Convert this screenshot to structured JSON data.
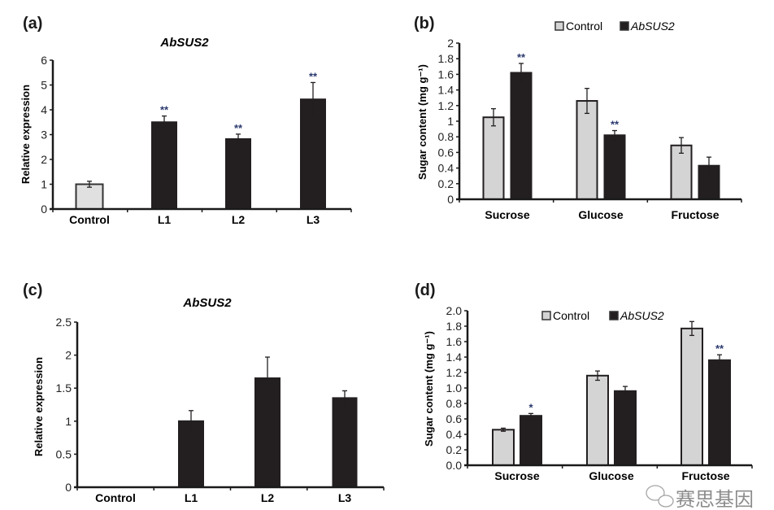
{
  "colors": {
    "control": "#e0e0e0",
    "control_b": "#d4d4d4",
    "transgenic": "#231f20",
    "axis": "#1a1a1a",
    "significance": "#2b3a6e",
    "panel_label": "#1a1a1a"
  },
  "watermark": {
    "icon": "wechat-icon",
    "text": "赛思基因"
  },
  "chart_data": [
    {
      "panel": "(a)",
      "type": "bar",
      "title": "AbSUS2",
      "ylabel": "Relative expression",
      "xlabel": "",
      "ylim": [
        0,
        6
      ],
      "yticks": [
        "0",
        "1",
        "2",
        "3",
        "4",
        "5",
        "6"
      ],
      "grid": false,
      "categories": [
        "Control",
        "L1",
        "L2",
        "L3"
      ],
      "values": [
        1.0,
        3.5,
        2.82,
        4.42
      ],
      "errors": [
        0.12,
        0.25,
        0.2,
        0.68
      ],
      "bar_fill": [
        "control",
        "transgenic",
        "transgenic",
        "transgenic"
      ],
      "significance": [
        "",
        "**",
        "**",
        "**"
      ]
    },
    {
      "panel": "(b)",
      "type": "bar",
      "title": "",
      "ylabel": "Sugar content (mg g⁻¹)",
      "xlabel": "",
      "ylim": [
        0,
        2
      ],
      "yticks": [
        "0",
        "0.2",
        "0.4",
        "0.6",
        "0.8",
        "1",
        "1.2",
        "1.4",
        "1.6",
        "1.8",
        "2"
      ],
      "grid": false,
      "legend": "top",
      "categories": [
        "Sucrose",
        "Glucose",
        "Fructose"
      ],
      "series": [
        {
          "name": "Control",
          "values": [
            1.05,
            1.26,
            0.69
          ],
          "errors": [
            0.11,
            0.16,
            0.1
          ],
          "significance": [
            "",
            "",
            ""
          ]
        },
        {
          "name": "AbSUS2",
          "values": [
            1.62,
            0.82,
            0.43
          ],
          "errors": [
            0.12,
            0.06,
            0.11
          ],
          "significance": [
            "**",
            "**",
            ""
          ]
        }
      ]
    },
    {
      "panel": "(c)",
      "type": "bar",
      "title": "AbSUS2",
      "ylabel": "Relative expression",
      "xlabel": "",
      "ylim": [
        0,
        2.5
      ],
      "yticks": [
        "0",
        "0.5",
        "1",
        "1.5",
        "2",
        "2.5"
      ],
      "grid": false,
      "categories": [
        "Control",
        "L1",
        "L2",
        "L3"
      ],
      "values": [
        0,
        1.0,
        1.65,
        1.35
      ],
      "errors": [
        0,
        0.16,
        0.32,
        0.11
      ],
      "bar_fill": [
        "control",
        "transgenic",
        "transgenic",
        "transgenic"
      ],
      "significance": [
        "",
        "",
        "",
        ""
      ]
    },
    {
      "panel": "(d)",
      "type": "bar",
      "title": "",
      "ylabel": "Sugar content (mg g⁻¹)",
      "xlabel": "",
      "ylim": [
        0,
        2.0
      ],
      "yticks": [
        "0.0",
        "0.2",
        "0.4",
        "0.6",
        "0.8",
        "1.0",
        "1.2",
        "1.4",
        "1.6",
        "1.8",
        "2.0"
      ],
      "grid": false,
      "legend": "top",
      "categories": [
        "Sucrose",
        "Glucose",
        "Fructose"
      ],
      "series": [
        {
          "name": "Control",
          "values": [
            0.46,
            1.16,
            1.77
          ],
          "errors": [
            0.02,
            0.06,
            0.09
          ],
          "significance": [
            "",
            "",
            ""
          ]
        },
        {
          "name": "AbSUS2",
          "values": [
            0.64,
            0.96,
            1.36
          ],
          "errors": [
            0.03,
            0.06,
            0.07
          ],
          "significance": [
            "*",
            "",
            "**"
          ]
        }
      ]
    }
  ]
}
